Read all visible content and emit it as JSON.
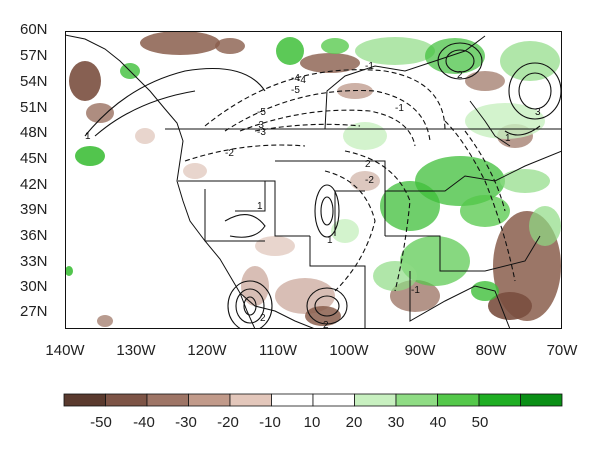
{
  "map": {
    "lat_labels": [
      "60N",
      "57N",
      "54N",
      "51N",
      "48N",
      "45N",
      "42N",
      "39N",
      "36N",
      "33N",
      "30N",
      "27N"
    ],
    "lon_labels": [
      "140W",
      "130W",
      "120W",
      "110W",
      "100W",
      "90W",
      "80W",
      "70W"
    ],
    "contour_labels": [
      "1",
      "2",
      "3",
      "-2",
      "-3",
      "-4",
      "-5",
      "-1",
      "1",
      "2",
      "2",
      "1",
      "-1",
      "-3",
      "-4",
      "-5",
      "-2",
      "1",
      "2",
      "-1"
    ]
  },
  "colorbar": {
    "tick_labels": [
      "-50",
      "-40",
      "-30",
      "-20",
      "-10",
      "10",
      "20",
      "30",
      "40",
      "50"
    ],
    "colors": [
      "#5a3a2e",
      "#7d5446",
      "#9e7566",
      "#c19a8a",
      "#e3c7bb",
      "#ffffff",
      "#ffffff",
      "#c8f0c0",
      "#8fdc84",
      "#54c84a",
      "#1fae23",
      "#0a8f16"
    ]
  },
  "colors": {
    "dry": "#8a5e4c",
    "wet": "#3fbf3a",
    "contour": "#111111"
  }
}
